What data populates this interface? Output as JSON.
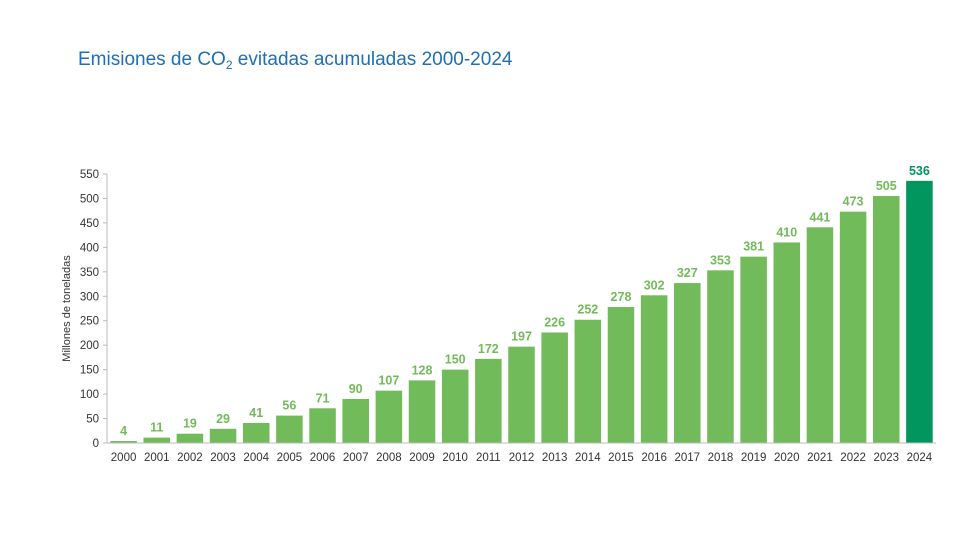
{
  "chart_data": {
    "type": "bar",
    "title_prefix": "Emisiones de CO",
    "title_subscript": "2",
    "title_suffix": " evitadas acumuladas 2000-2024",
    "xlabel": "",
    "ylabel": "Millones de toneladas",
    "ylim": [
      0,
      550
    ],
    "yticks": [
      0,
      50,
      100,
      150,
      200,
      250,
      300,
      350,
      400,
      450,
      500,
      550
    ],
    "grid": false,
    "categories": [
      "2000",
      "2001",
      "2002",
      "2003",
      "2004",
      "2005",
      "2006",
      "2007",
      "2008",
      "2009",
      "2010",
      "2011",
      "2012",
      "2013",
      "2014",
      "2015",
      "2016",
      "2017",
      "2018",
      "2019",
      "2020",
      "2021",
      "2022",
      "2023",
      "2024"
    ],
    "values": [
      4,
      11,
      19,
      29,
      41,
      56,
      71,
      90,
      107,
      128,
      150,
      172,
      197,
      226,
      252,
      278,
      302,
      327,
      353,
      381,
      410,
      441,
      473,
      505,
      536
    ],
    "data_labels": [
      "4",
      "11",
      "19",
      "29",
      "41",
      "56",
      "71",
      "90",
      "107",
      "128",
      "150",
      "172",
      "197",
      "226",
      "252",
      "278",
      "302",
      "327",
      "353",
      "381",
      "410",
      "441",
      "473",
      "505",
      "536"
    ],
    "colors": {
      "bar": "#72bb5a",
      "highlight_bar": "#00965e",
      "title": "#1f6fb5",
      "axis": "#bbbbbb"
    },
    "highlight_index": 24
  }
}
